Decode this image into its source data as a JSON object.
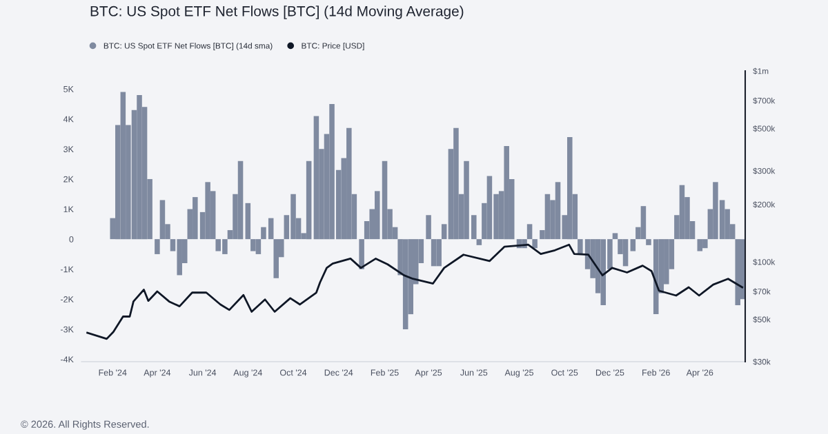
{
  "chart_data": {
    "type": "bar",
    "title": "BTC: US Spot ETF Net Flows [BTC] (14d Moving Average)",
    "annotations": [
      "© 2026. All Rights Reserved."
    ],
    "legend": "top left",
    "grid": false,
    "series": [
      {
        "name": "BTC: US Spot ETF Net Flows [BTC] (14d sma)",
        "color": "#7f8aa0",
        "axis": "y",
        "x": [
          "2024-02-01",
          "2024-02-08",
          "2024-02-15",
          "2024-02-22",
          "2024-03-01",
          "2024-03-08",
          "2024-03-15",
          "2024-03-22",
          "2024-04-01",
          "2024-04-08",
          "2024-04-15",
          "2024-04-22",
          "2024-05-01",
          "2024-05-08",
          "2024-05-15",
          "2024-05-22",
          "2024-06-01",
          "2024-06-08",
          "2024-06-15",
          "2024-06-22",
          "2024-07-01",
          "2024-07-08",
          "2024-07-15",
          "2024-07-22",
          "2024-08-01",
          "2024-08-08",
          "2024-08-15",
          "2024-08-22",
          "2024-09-01",
          "2024-09-08",
          "2024-09-15",
          "2024-09-22",
          "2024-10-01",
          "2024-10-08",
          "2024-10-15",
          "2024-10-22",
          "2024-11-01",
          "2024-11-08",
          "2024-11-15",
          "2024-11-22",
          "2024-12-01",
          "2024-12-08",
          "2024-12-15",
          "2024-12-22",
          "2025-01-01",
          "2025-01-08",
          "2025-01-15",
          "2025-01-22",
          "2025-02-01",
          "2025-02-08",
          "2025-02-15",
          "2025-02-22",
          "2025-03-01",
          "2025-03-08",
          "2025-03-15",
          "2025-03-22",
          "2025-04-01",
          "2025-04-08",
          "2025-04-15",
          "2025-04-22",
          "2025-05-01",
          "2025-05-08",
          "2025-05-15",
          "2025-05-22",
          "2025-06-01",
          "2025-06-08",
          "2025-06-15",
          "2025-06-22",
          "2025-07-01",
          "2025-07-08",
          "2025-07-15",
          "2025-07-22",
          "2025-08-01",
          "2025-08-08",
          "2025-08-15",
          "2025-08-22",
          "2025-09-01",
          "2025-09-08",
          "2025-09-15",
          "2025-09-22",
          "2025-10-01",
          "2025-10-08",
          "2025-10-15",
          "2025-10-22",
          "2025-11-01",
          "2025-11-08",
          "2025-11-15",
          "2025-11-22",
          "2025-12-01",
          "2025-12-08",
          "2025-12-15",
          "2025-12-22",
          "2026-01-01",
          "2026-01-08",
          "2026-01-15",
          "2026-01-22",
          "2026-02-01",
          "2026-02-08",
          "2026-02-15",
          "2026-02-22",
          "2026-03-01",
          "2026-03-08",
          "2026-03-15",
          "2026-03-22",
          "2026-04-01",
          "2026-04-08",
          "2026-04-15",
          "2026-04-22",
          "2026-05-01",
          "2026-05-08",
          "2026-05-15",
          "2026-05-22",
          "2026-05-29"
        ],
        "values": [
          700,
          3800,
          4900,
          3800,
          4300,
          4800,
          4400,
          2000,
          -500,
          1300,
          500,
          -400,
          -1200,
          -800,
          1000,
          1400,
          900,
          1900,
          1600,
          -400,
          -500,
          300,
          1500,
          2600,
          1200,
          -400,
          -500,
          400,
          700,
          -1300,
          -600,
          800,
          1500,
          700,
          200,
          2600,
          4100,
          3000,
          3500,
          4500,
          2300,
          2700,
          3700,
          1500,
          -1000,
          600,
          1000,
          1600,
          2600,
          1000,
          400,
          -1200,
          -3000,
          -2500,
          -1500,
          -800,
          800,
          -900,
          -900,
          500,
          3000,
          3700,
          1500,
          2600,
          800,
          -200,
          1200,
          2100,
          1500,
          1600,
          3100,
          2000,
          -300,
          -300,
          500,
          -300,
          300,
          1500,
          1300,
          1900,
          800,
          3400,
          1500,
          -500,
          -1000,
          -1300,
          -1800,
          -2200,
          -1000,
          200,
          -500,
          -900,
          -400,
          400,
          1100,
          -200,
          -2500,
          -1800,
          -1500,
          -1000,
          800,
          1800,
          1400,
          600,
          -400,
          -300,
          1000,
          1900,
          1300,
          1000,
          500,
          -2200,
          -2000
        ]
      },
      {
        "name": "BTC: Price [USD]",
        "type": "line",
        "color": "#0f1726",
        "axis": "y2",
        "x": [
          "2023-12-29",
          "2024-01-24",
          "2024-02-02",
          "2024-02-15",
          "2024-02-24",
          "2024-02-29",
          "2024-03-14",
          "2024-03-20",
          "2024-04-01",
          "2024-04-17",
          "2024-05-01",
          "2024-05-18",
          "2024-06-06",
          "2024-06-25",
          "2024-07-07",
          "2024-07-26",
          "2024-08-06",
          "2024-08-24",
          "2024-09-06",
          "2024-09-27",
          "2024-10-10",
          "2024-11-01",
          "2024-11-06",
          "2024-11-15",
          "2024-11-23",
          "2024-12-17",
          "2024-12-31",
          "2025-01-20",
          "2025-02-05",
          "2025-02-27",
          "2025-03-11",
          "2025-04-07",
          "2025-04-22",
          "2025-05-18",
          "2025-06-22",
          "2025-07-12",
          "2025-08-13",
          "2025-08-30",
          "2025-09-18",
          "2025-10-07",
          "2025-10-14",
          "2025-11-02",
          "2025-11-21",
          "2025-12-04",
          "2025-12-24",
          "2026-01-14",
          "2026-01-26",
          "2026-02-05",
          "2026-02-28",
          "2026-03-17",
          "2026-03-31",
          "2026-04-19",
          "2026-05-09",
          "2026-05-28"
        ],
        "values": [
          42500,
          39500,
          43000,
          51700,
          51700,
          62000,
          71500,
          62500,
          70000,
          62000,
          58500,
          69000,
          69000,
          59800,
          56000,
          67000,
          54800,
          63500,
          54800,
          64500,
          59800,
          69000,
          78000,
          93000,
          98000,
          104000,
          93000,
          104000,
          97000,
          85000,
          81500,
          77000,
          93000,
          109000,
          101000,
          120000,
          123000,
          110000,
          115000,
          123000,
          110000,
          109000,
          85000,
          93000,
          88000,
          95500,
          89500,
          70600,
          66600,
          73600,
          66600,
          76000,
          81500,
          73600
        ]
      }
    ],
    "xlim": [
      "2023-12-21",
      "2026-06-01"
    ],
    "xticks": [
      {
        "value": "2024-02-01",
        "label": "Feb '24"
      },
      {
        "value": "2024-04-01",
        "label": "Apr '24"
      },
      {
        "value": "2024-06-01",
        "label": "Jun '24"
      },
      {
        "value": "2024-08-01",
        "label": "Aug '24"
      },
      {
        "value": "2024-10-01",
        "label": "Oct '24"
      },
      {
        "value": "2024-12-01",
        "label": "Dec '24"
      },
      {
        "value": "2025-02-01",
        "label": "Feb '25"
      },
      {
        "value": "2025-04-01",
        "label": "Apr '25"
      },
      {
        "value": "2025-06-01",
        "label": "Jun '25"
      },
      {
        "value": "2025-08-01",
        "label": "Aug '25"
      },
      {
        "value": "2025-10-01",
        "label": "Oct '25"
      },
      {
        "value": "2025-12-01",
        "label": "Dec '25"
      },
      {
        "value": "2026-02-01",
        "label": "Feb '26"
      },
      {
        "value": "2026-04-01",
        "label": "Apr '26"
      }
    ],
    "ylim": [
      -4080,
      5600
    ],
    "yticks": [
      {
        "value": -4000,
        "label": "-4K"
      },
      {
        "value": -3000,
        "label": "-3K"
      },
      {
        "value": -2000,
        "label": "-2K"
      },
      {
        "value": -1000,
        "label": "-1K"
      },
      0,
      {
        "value": 1000,
        "label": "1K"
      },
      {
        "value": 2000,
        "label": "2K"
      },
      {
        "value": 3000,
        "label": "3K"
      },
      {
        "value": 4000,
        "label": "4K"
      },
      {
        "value": 5000,
        "label": "5K"
      }
    ],
    "log": "y2",
    "y2lim": [
      30000,
      1000000
    ],
    "y2ticks": [
      {
        "value": 30000,
        "label": "$30k"
      },
      {
        "value": 50000,
        "label": "$50k"
      },
      {
        "value": 70000,
        "label": "$70k"
      },
      {
        "value": 100000,
        "label": "$100k"
      },
      {
        "value": 200000,
        "label": "$200k"
      },
      {
        "value": 300000,
        "label": "$300k"
      },
      {
        "value": 500000,
        "label": "$500k"
      },
      {
        "value": 700000,
        "label": "$700k"
      },
      {
        "value": 1000000,
        "label": "$1m"
      }
    ]
  }
}
